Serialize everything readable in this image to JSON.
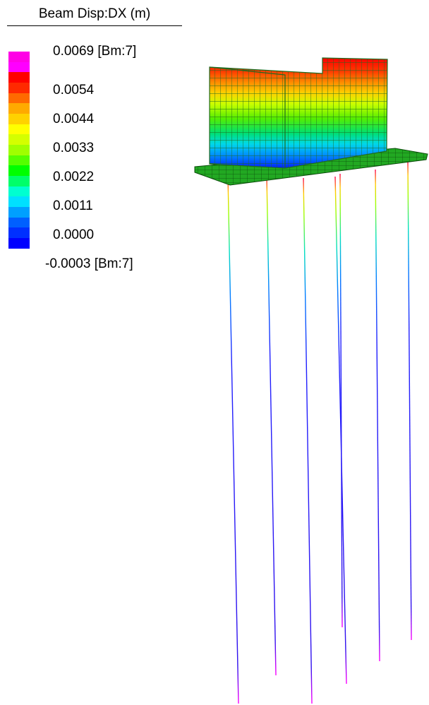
{
  "legend": {
    "title": "Beam Disp:DX (m)",
    "max_label": "0.0069 [Bm:7]",
    "min_label": "-0.0003 [Bm:7]",
    "ticks": [
      "0.0054",
      "0.0044",
      "0.0033",
      "0.0022",
      "0.0011",
      "0.0000"
    ],
    "colors": [
      "#ff00e6",
      "#ff00ff",
      "#ff0000",
      "#ff2a00",
      "#ff6a00",
      "#ffaa00",
      "#ffd200",
      "#ffff00",
      "#d4ff00",
      "#a0ff00",
      "#55ff00",
      "#00ff00",
      "#00ff6a",
      "#00ffd0",
      "#00e0ff",
      "#00a0ff",
      "#0060ff",
      "#0030ff",
      "#0000ff"
    ]
  }
}
